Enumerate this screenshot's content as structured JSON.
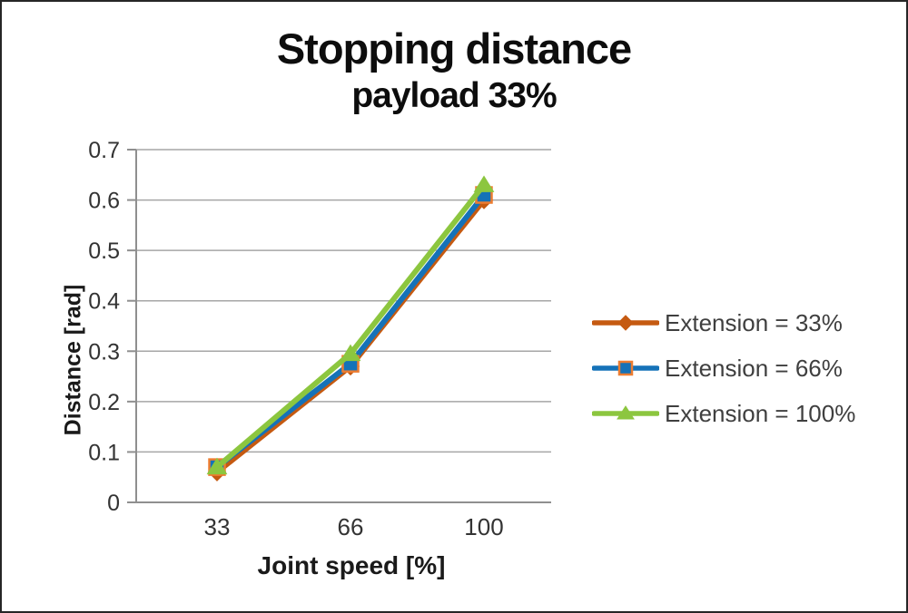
{
  "window": {
    "background": "#ffffff",
    "border_color": "#262626"
  },
  "chart_data": {
    "type": "line",
    "title": "Stopping distance",
    "subtitle": "payload 33%",
    "xlabel": "Joint speed [%]",
    "ylabel": "Distance [rad]",
    "categories": [
      "33",
      "66",
      "100"
    ],
    "series": [
      {
        "name": "Extension = 33%",
        "values": [
          0.06,
          0.27,
          0.6
        ],
        "color": "#C55A11",
        "marker": "diamond",
        "marker_fill": "#C55A11",
        "marker_border": "#C55A11"
      },
      {
        "name": "Extension = 66%",
        "values": [
          0.07,
          0.275,
          0.61
        ],
        "color": "#1572B8",
        "marker": "square",
        "marker_fill": "#1572B8",
        "marker_border": "#ED7D31"
      },
      {
        "name": "Extension = 100%",
        "values": [
          0.07,
          0.295,
          0.63
        ],
        "color": "#8CC63F",
        "marker": "triangle",
        "marker_fill": "#8CC63F",
        "marker_border": "#8CC63F"
      }
    ],
    "ylim": [
      0,
      0.7
    ],
    "y_ticks": [
      "0",
      "0.1",
      "0.2",
      "0.3",
      "0.4",
      "0.5",
      "0.6",
      "0.7"
    ],
    "grid": true,
    "legend_position": "right",
    "colors": {
      "gridline": "#A6A6A6",
      "axis": "#8F8F8F",
      "tick_label": "#333333",
      "legend_text": "#3F3F3F"
    }
  }
}
